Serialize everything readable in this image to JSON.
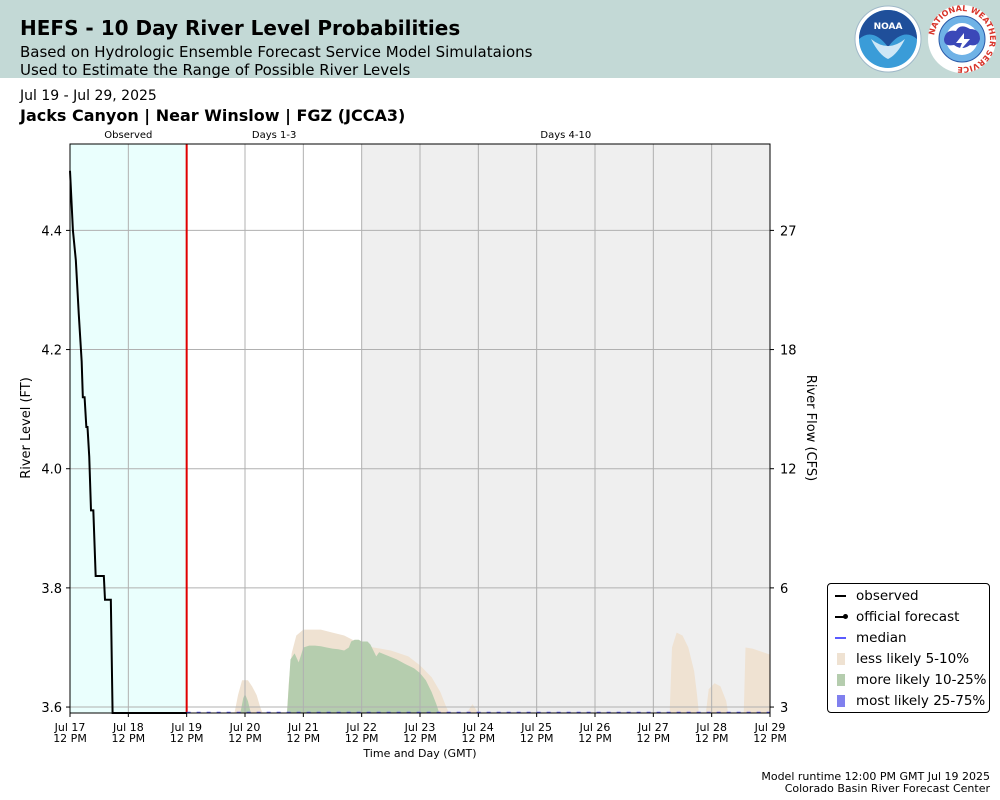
{
  "header": {
    "title": "HEFS - 10 Day River Level Probabilities",
    "subtitle_line1": "Based on Hydrologic Ensemble Forecast Service Model Simulataions",
    "subtitle_line2": "Used to Estimate the Range of Possible River Levels",
    "date_range": "Jul 19 - Jul 29, 2025",
    "location": "Jacks Canyon | Near Winslow | FGZ (JCCA3)"
  },
  "logos": {
    "noaa_text": "NOAA",
    "nws_ring_text": "NATIONAL WEATHER SERVICE"
  },
  "footer": {
    "model_runtime": "Model runtime 12:00 PM GMT Jul 19 2025",
    "center": "Colorado Basin River Forecast Center"
  },
  "legend": {
    "observed": "observed",
    "official": "official forecast",
    "median": "median",
    "less_likely": "less likely 5-10%",
    "more_likely": "more likely 10-25%",
    "most_likely": "most likely 25-75%"
  },
  "chart_data": {
    "type": "area",
    "xlabel": "Time and Day (GMT)",
    "ylabel": "River Level (FT)",
    "ylabel_right": "River Flow (CFS)",
    "xlim_days": [
      0,
      12
    ],
    "ylim": [
      3.59,
      4.545
    ],
    "grid": true,
    "legend_position": "right-bottom, outside",
    "period_labels": [
      {
        "label": "Observed",
        "center_day": 1.0
      },
      {
        "label": "Days 1-3",
        "center_day": 3.5
      },
      {
        "label": "Days 4-10",
        "center_day": 8.5
      }
    ],
    "observed_period_days": [
      0,
      2
    ],
    "shaded_period_days": [
      5,
      12
    ],
    "current_time_day": 2,
    "x_ticks": [
      {
        "day": 0,
        "line1": "Jul 17",
        "line2": "12 PM"
      },
      {
        "day": 1,
        "line1": "Jul 18",
        "line2": "12 PM"
      },
      {
        "day": 2,
        "line1": "Jul 19",
        "line2": "12 PM"
      },
      {
        "day": 3,
        "line1": "Jul 20",
        "line2": "12 PM"
      },
      {
        "day": 4,
        "line1": "Jul 21",
        "line2": "12 PM"
      },
      {
        "day": 5,
        "line1": "Jul 22",
        "line2": "12 PM"
      },
      {
        "day": 6,
        "line1": "Jul 23",
        "line2": "12 PM"
      },
      {
        "day": 7,
        "line1": "Jul 24",
        "line2": "12 PM"
      },
      {
        "day": 8,
        "line1": "Jul 25",
        "line2": "12 PM"
      },
      {
        "day": 9,
        "line1": "Jul 26",
        "line2": "12 PM"
      },
      {
        "day": 10,
        "line1": "Jul 27",
        "line2": "12 PM"
      },
      {
        "day": 11,
        "line1": "Jul 28",
        "line2": "12 PM"
      },
      {
        "day": 12,
        "line1": "Jul 29",
        "line2": "12 PM"
      }
    ],
    "y_ticks_left": [
      "3.6",
      "3.8",
      "4.0",
      "4.2",
      "4.4"
    ],
    "y_ticks_left_values": [
      3.6,
      3.8,
      4.0,
      4.2,
      4.4
    ],
    "y_ticks_right": [
      "3",
      "6",
      "12",
      "18",
      "27"
    ],
    "y_ticks_right_at_stage": [
      3.6,
      3.8,
      4.0,
      4.2,
      4.4
    ],
    "observed": {
      "name": "observed",
      "days": [
        0,
        0.05,
        0.1,
        0.15,
        0.2,
        0.22,
        0.25,
        0.28,
        0.3,
        0.33,
        0.36,
        0.38,
        0.4,
        0.44,
        0.48,
        0.5,
        0.52,
        0.55,
        0.58,
        0.6,
        0.62,
        0.66,
        0.7,
        0.73,
        0.75,
        0.78,
        0.8,
        0.82,
        0.86,
        0.88,
        0.9,
        2.0
      ],
      "values": [
        4.5,
        4.4,
        4.35,
        4.26,
        4.18,
        4.12,
        4.12,
        4.07,
        4.07,
        4.02,
        3.93,
        3.93,
        3.93,
        3.82,
        3.82,
        3.82,
        3.82,
        3.82,
        3.82,
        3.78,
        3.78,
        3.78,
        3.78,
        3.59,
        3.59,
        3.59,
        3.59,
        3.59,
        3.59,
        3.59,
        3.59,
        3.59
      ]
    },
    "median": {
      "name": "median",
      "days": [
        2,
        12
      ],
      "values": [
        3.591,
        3.591
      ]
    },
    "less_likely_5_10": {
      "name": "less likely 5-10%",
      "segments": [
        {
          "days": [
            2.82,
            2.88,
            2.95,
            3.05,
            3.12,
            3.2,
            3.26,
            3.3
          ],
          "values": [
            3.59,
            3.62,
            3.645,
            3.645,
            3.635,
            3.62,
            3.6,
            3.59
          ]
        },
        {
          "days": [
            3.72,
            3.75,
            3.8,
            3.88,
            4.0,
            4.1,
            4.3,
            4.5,
            4.7,
            4.9,
            5.0,
            5.2,
            5.5,
            5.8,
            6.0,
            6.2,
            6.35,
            6.45,
            6.5
          ],
          "values": [
            3.59,
            3.64,
            3.69,
            3.72,
            3.73,
            3.73,
            3.73,
            3.725,
            3.72,
            3.71,
            3.705,
            3.7,
            3.695,
            3.685,
            3.67,
            3.65,
            3.625,
            3.6,
            3.59
          ]
        },
        {
          "days": [
            6.8,
            6.9,
            7.0
          ],
          "values": [
            3.59,
            3.605,
            3.59
          ]
        },
        {
          "days": [
            10.28,
            10.32,
            10.4,
            10.5,
            10.6,
            10.7,
            10.75,
            10.78
          ],
          "values": [
            3.59,
            3.7,
            3.725,
            3.72,
            3.7,
            3.66,
            3.62,
            3.59
          ]
        },
        {
          "days": [
            10.9,
            10.95,
            11.05,
            11.15,
            11.25,
            11.28
          ],
          "values": [
            3.59,
            3.63,
            3.64,
            3.635,
            3.61,
            3.59
          ]
        },
        {
          "days": [
            11.55,
            11.58,
            11.7,
            11.85,
            12.0
          ],
          "values": [
            3.59,
            3.7,
            3.698,
            3.693,
            3.688
          ]
        }
      ]
    },
    "more_likely_10_25": {
      "name": "more likely 10-25%",
      "segments": [
        {
          "days": [
            2.92,
            2.97,
            3.0,
            3.05,
            3.1
          ],
          "values": [
            3.59,
            3.615,
            3.622,
            3.61,
            3.59
          ]
        },
        {
          "days": [
            3.72,
            3.78,
            3.85,
            3.92,
            3.97,
            4.0,
            4.1,
            4.2,
            4.3,
            4.4,
            4.5,
            4.6,
            4.7,
            4.78,
            4.82,
            4.88,
            4.95,
            5.0,
            5.1,
            5.15,
            5.2,
            5.25,
            5.3,
            5.4,
            5.6,
            5.75,
            5.9,
            6.0,
            6.1,
            6.2,
            6.28,
            6.33
          ],
          "values": [
            3.59,
            3.68,
            3.69,
            3.675,
            3.69,
            3.7,
            3.703,
            3.703,
            3.702,
            3.7,
            3.698,
            3.697,
            3.695,
            3.7,
            3.71,
            3.713,
            3.713,
            3.71,
            3.71,
            3.705,
            3.695,
            3.685,
            3.692,
            3.688,
            3.68,
            3.672,
            3.665,
            3.657,
            3.645,
            3.625,
            3.605,
            3.59
          ]
        }
      ]
    },
    "most_likely_25_75": {
      "name": "most likely 25-75%",
      "segments": []
    }
  }
}
